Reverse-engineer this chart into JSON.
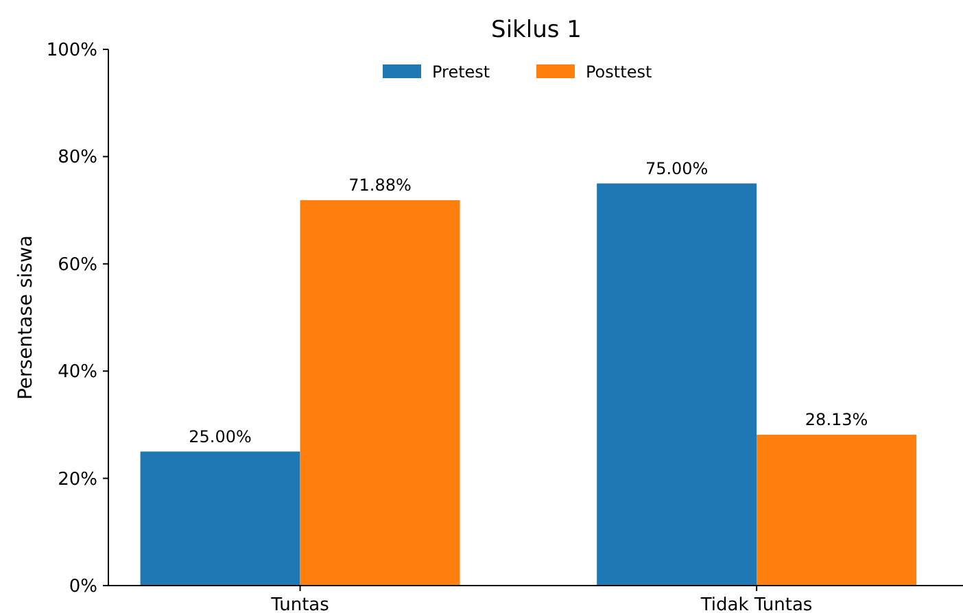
{
  "chart_data": {
    "type": "bar",
    "title": "Siklus 1",
    "ylabel": "Persentase siswa",
    "categories": [
      "Tuntas",
      "Tidak Tuntas"
    ],
    "series": [
      {
        "name": "Pretest",
        "color": "#1f77b4",
        "values": [
          25,
          75
        ],
        "value_labels": [
          "25.00%",
          "75.00%"
        ]
      },
      {
        "name": "Posttest",
        "color": "#ff7f0e",
        "values": [
          71.88,
          28.13
        ],
        "value_labels": [
          "71.88%",
          "28.13%"
        ]
      }
    ],
    "ylim": [
      0,
      100
    ],
    "yticks": [
      {
        "value": 0,
        "label": "0%"
      },
      {
        "value": 20,
        "label": "20%"
      },
      {
        "value": 40,
        "label": "40%"
      },
      {
        "value": 60,
        "label": "60%"
      },
      {
        "value": 80,
        "label": "80%"
      },
      {
        "value": 100,
        "label": "100%"
      }
    ],
    "legend": "top",
    "grid": false
  }
}
